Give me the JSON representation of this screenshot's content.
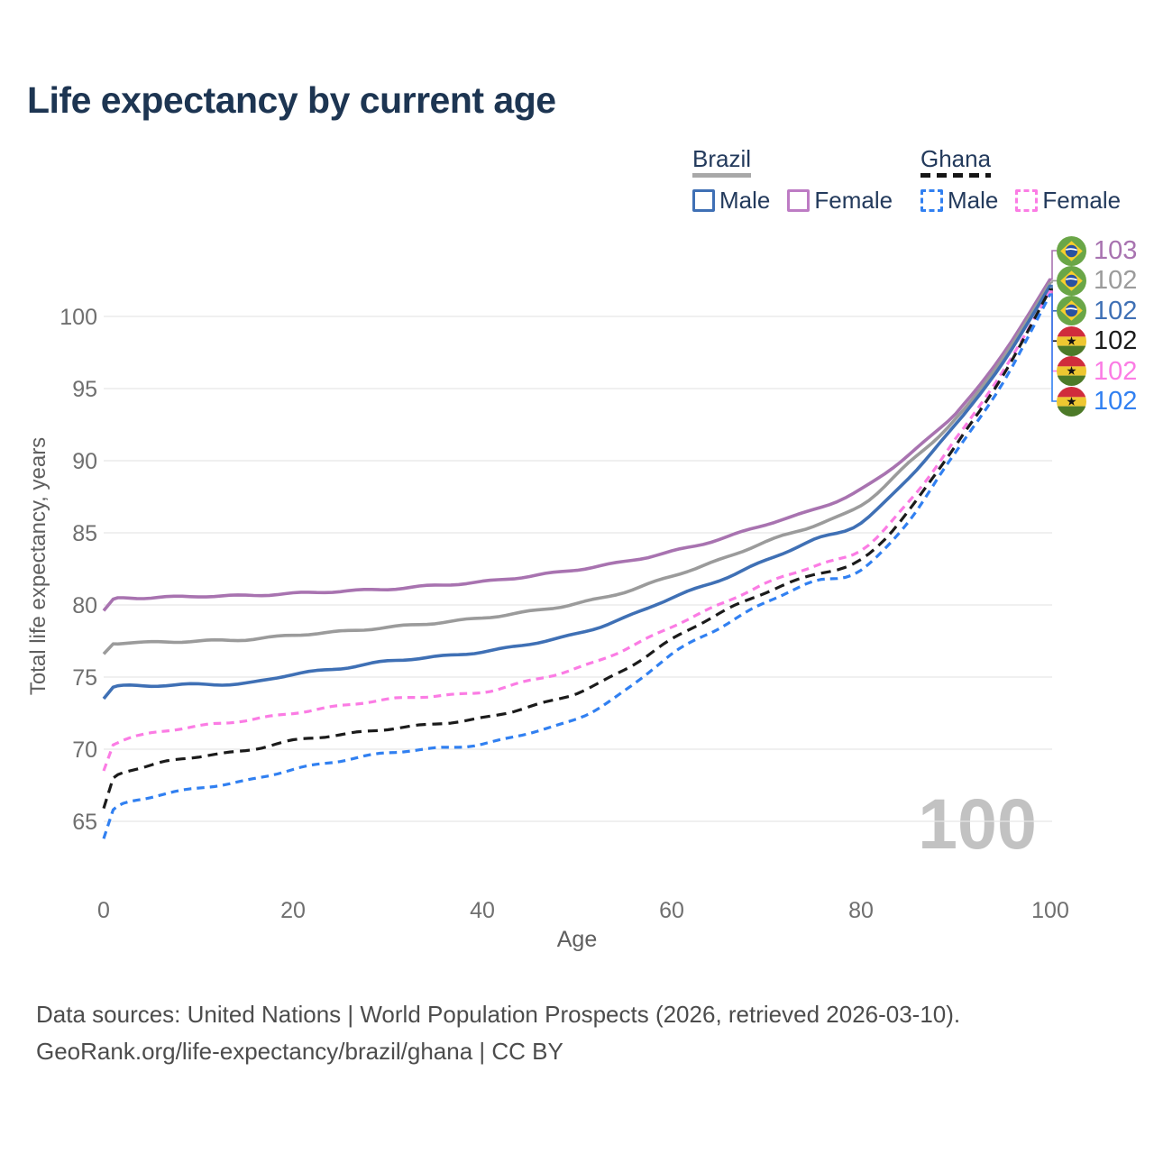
{
  "title": "Life expectancy by current age",
  "legend": {
    "groups": [
      {
        "label": "Brazil",
        "rule_style": "solid",
        "rule_color": "#a8a8a8",
        "items": [
          {
            "label": "Male",
            "color": "#3f70b5",
            "dash": "solid"
          },
          {
            "label": "Female",
            "color": "#bd7cc4",
            "dash": "solid"
          }
        ]
      },
      {
        "label": "Ghana",
        "rule_style": "dashed",
        "rule_color": "#151515",
        "items": [
          {
            "label": "Male",
            "color": "#3180f1",
            "dash": "dashed"
          },
          {
            "label": "Female",
            "color": "#fb7ce4",
            "dash": "dashed"
          }
        ]
      }
    ]
  },
  "chart_data": {
    "type": "line",
    "title": "Life expectancy by current age",
    "xlabel": "Age",
    "ylabel": "Total life expectancy, years",
    "xlim": [
      0,
      100
    ],
    "ylim": [
      62.5,
      103.5
    ],
    "xticks": [
      0,
      20,
      40,
      60,
      80,
      100
    ],
    "yticks": [
      65,
      70,
      75,
      80,
      85,
      90,
      95,
      100
    ],
    "grid": "horizontal",
    "legend_position": "top-right",
    "age_indicator": "100",
    "ages": [
      0,
      1,
      5,
      10,
      15,
      20,
      25,
      30,
      35,
      40,
      45,
      50,
      55,
      60,
      65,
      70,
      75,
      80,
      85,
      90,
      95,
      100
    ],
    "series": [
      {
        "name": "Brazil Female",
        "country": "Brazil",
        "sex": "Female",
        "color": "#a873b0",
        "dash": "solid",
        "end_value_label": "103",
        "values": [
          79.6,
          80.4,
          80.5,
          80.6,
          80.65,
          80.8,
          80.95,
          81.1,
          81.35,
          81.6,
          82.0,
          82.45,
          83.0,
          83.7,
          84.55,
          85.6,
          86.6,
          88.0,
          90.4,
          93.3,
          97.4,
          102.6
        ]
      },
      {
        "name": "Brazil All",
        "country": "Brazil",
        "sex": "All",
        "color": "#9b9b9b",
        "dash": "solid",
        "end_value_label": "102",
        "values": [
          76.6,
          77.3,
          77.4,
          77.5,
          77.6,
          77.9,
          78.15,
          78.45,
          78.75,
          79.1,
          79.55,
          80.1,
          80.9,
          82.0,
          83.1,
          84.4,
          85.5,
          86.9,
          89.8,
          92.9,
          97.1,
          102.35
        ]
      },
      {
        "name": "Brazil Male",
        "country": "Brazil",
        "sex": "Male",
        "color": "#3f70b5",
        "dash": "solid",
        "end_value_label": "102",
        "values": [
          73.5,
          74.3,
          74.4,
          74.5,
          74.55,
          75.2,
          75.6,
          76.1,
          76.4,
          76.75,
          77.3,
          78.0,
          79.1,
          80.5,
          81.7,
          83.1,
          84.5,
          85.7,
          88.8,
          92.5,
          96.8,
          102.15
        ]
      },
      {
        "name": "Ghana All",
        "country": "Ghana",
        "sex": "All",
        "color": "#1b1b1b",
        "dash": "dashed",
        "end_value_label": "102",
        "values": [
          65.9,
          68.0,
          68.9,
          69.5,
          69.9,
          70.6,
          71.0,
          71.4,
          71.75,
          72.15,
          72.95,
          73.9,
          75.5,
          77.6,
          79.4,
          80.9,
          82.1,
          83.1,
          86.5,
          91.1,
          95.9,
          101.9
        ]
      },
      {
        "name": "Ghana Female",
        "country": "Ghana",
        "sex": "Female",
        "color": "#fb7ce4",
        "dash": "dashed",
        "end_value_label": "102",
        "values": [
          68.5,
          70.3,
          71.1,
          71.6,
          72.0,
          72.5,
          73.0,
          73.45,
          73.7,
          73.95,
          74.75,
          75.6,
          76.9,
          78.5,
          80.0,
          81.5,
          82.7,
          83.8,
          87.1,
          91.5,
          96.2,
          101.75
        ]
      },
      {
        "name": "Ghana Male",
        "country": "Ghana",
        "sex": "Male",
        "color": "#3180f1",
        "dash": "dashed",
        "end_value_label": "102",
        "values": [
          63.8,
          65.8,
          66.7,
          67.3,
          67.8,
          68.6,
          69.2,
          69.75,
          70.05,
          70.35,
          71.15,
          72.1,
          74.0,
          76.6,
          78.4,
          80.2,
          81.6,
          82.4,
          85.8,
          90.6,
          95.4,
          101.55
        ]
      }
    ],
    "end_labels": [
      {
        "flag": "brazil",
        "value": "103",
        "series": "Brazil Female"
      },
      {
        "flag": "brazil",
        "value": "102",
        "series": "Brazil All"
      },
      {
        "flag": "brazil",
        "value": "102",
        "series": "Brazil Male"
      },
      {
        "flag": "ghana",
        "value": "102",
        "series": "Ghana All"
      },
      {
        "flag": "ghana",
        "value": "102",
        "series": "Ghana Female"
      },
      {
        "flag": "ghana",
        "value": "102",
        "series": "Ghana Male"
      }
    ]
  },
  "footer": {
    "line1": "Data sources: United Nations | World Population Prospects (2026, retrieved 2026-03-10).",
    "line2": "GeoRank.org/life-expectancy/brazil/ghana | CC BY"
  }
}
